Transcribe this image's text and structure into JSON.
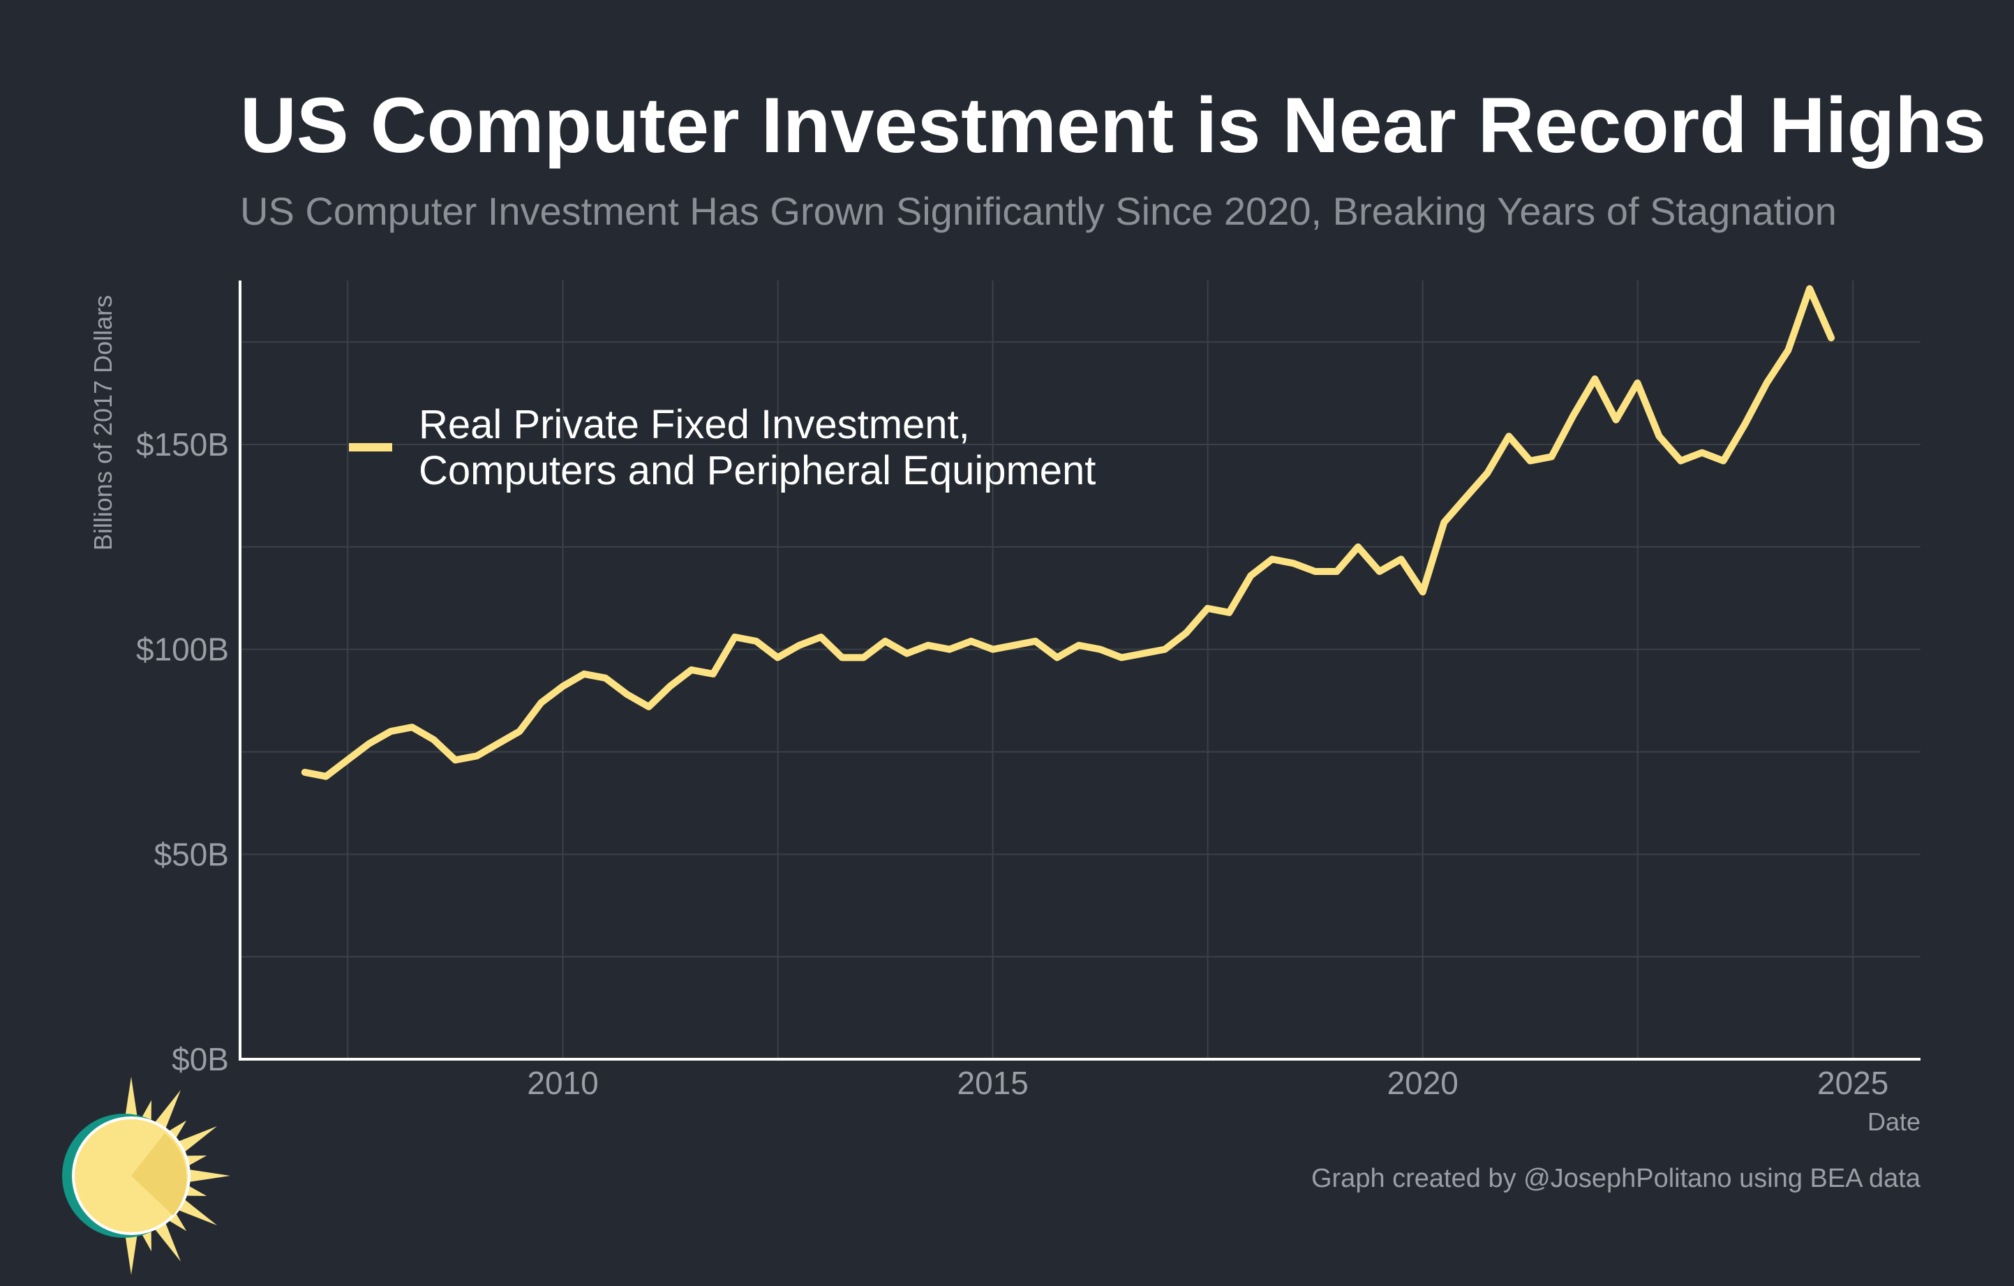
{
  "colors": {
    "background": "#252a32",
    "line": "#fde283",
    "grid": "#3b4049",
    "axis": "#ffffff",
    "logo_teal": "#139585",
    "logo_sun": "#fbe488"
  },
  "icons": {
    "logo": "sun-logo-icon"
  },
  "chart_data": {
    "type": "line",
    "title": "US Computer Investment is Near Record Highs",
    "subtitle": "US Computer Investment Has Grown Significantly Since 2020, Breaking Years of Stagnation",
    "xlabel": "Date",
    "ylabel": "Billions of 2017 Dollars",
    "xlim": [
      "2006-04-01",
      "2025-10-15"
    ],
    "ylim": [
      0,
      190
    ],
    "grid": true,
    "legend_position": "top-left",
    "x_ticks": [
      {
        "value": "2010-01-01",
        "label": "2010"
      },
      {
        "value": "2015-01-01",
        "label": "2015"
      },
      {
        "value": "2020-01-01",
        "label": "2020"
      },
      {
        "value": "2025-01-01",
        "label": "2025"
      }
    ],
    "y_ticks": [
      {
        "value": 0,
        "label": "$0B"
      },
      {
        "value": 50,
        "label": "$50B"
      },
      {
        "value": 100,
        "label": "$100B"
      },
      {
        "value": 150,
        "label": "$150B"
      }
    ],
    "series": [
      {
        "name": "Real Private Fixed Investment, Computers and Peripheral Equipment",
        "color": "#fde283",
        "x": [
          "2007-01-01",
          "2007-04-01",
          "2007-07-01",
          "2007-10-01",
          "2008-01-01",
          "2008-04-01",
          "2008-07-01",
          "2008-10-01",
          "2009-01-01",
          "2009-04-01",
          "2009-07-01",
          "2009-10-01",
          "2010-01-01",
          "2010-04-01",
          "2010-07-01",
          "2010-10-01",
          "2011-01-01",
          "2011-04-01",
          "2011-07-01",
          "2011-10-01",
          "2012-01-01",
          "2012-04-01",
          "2012-07-01",
          "2012-10-01",
          "2013-01-01",
          "2013-04-01",
          "2013-07-01",
          "2013-10-01",
          "2014-01-01",
          "2014-04-01",
          "2014-07-01",
          "2014-10-01",
          "2015-01-01",
          "2015-04-01",
          "2015-07-01",
          "2015-10-01",
          "2016-01-01",
          "2016-04-01",
          "2016-07-01",
          "2016-10-01",
          "2017-01-01",
          "2017-04-01",
          "2017-07-01",
          "2017-10-01",
          "2018-01-01",
          "2018-04-01",
          "2018-07-01",
          "2018-10-01",
          "2019-01-01",
          "2019-04-01",
          "2019-07-01",
          "2019-10-01",
          "2020-01-01",
          "2020-04-01",
          "2020-07-01",
          "2020-10-01",
          "2021-01-01",
          "2021-04-01",
          "2021-07-01",
          "2021-10-01",
          "2022-01-01",
          "2022-04-01",
          "2022-07-01",
          "2022-10-01",
          "2023-01-01",
          "2023-04-01",
          "2023-07-01",
          "2023-10-01",
          "2024-01-01",
          "2024-04-01",
          "2024-07-01",
          "2024-10-01"
        ],
        "y": [
          70,
          69,
          73,
          77,
          80,
          81,
          78,
          73,
          74,
          77,
          80,
          87,
          91,
          94,
          93,
          89,
          86,
          91,
          95,
          94,
          103,
          102,
          98,
          101,
          103,
          98,
          98,
          102,
          99,
          101,
          100,
          102,
          100,
          101,
          102,
          98,
          101,
          100,
          98,
          99,
          100,
          104,
          110,
          109,
          118,
          122,
          121,
          119,
          119,
          125,
          119,
          122,
          114,
          131,
          137,
          143,
          152,
          146,
          147,
          157,
          166,
          156,
          165,
          152,
          146,
          148,
          146,
          155,
          165,
          173,
          188,
          176
        ]
      }
    ]
  },
  "credit": "Graph created by @JosephPolitano using BEA data"
}
